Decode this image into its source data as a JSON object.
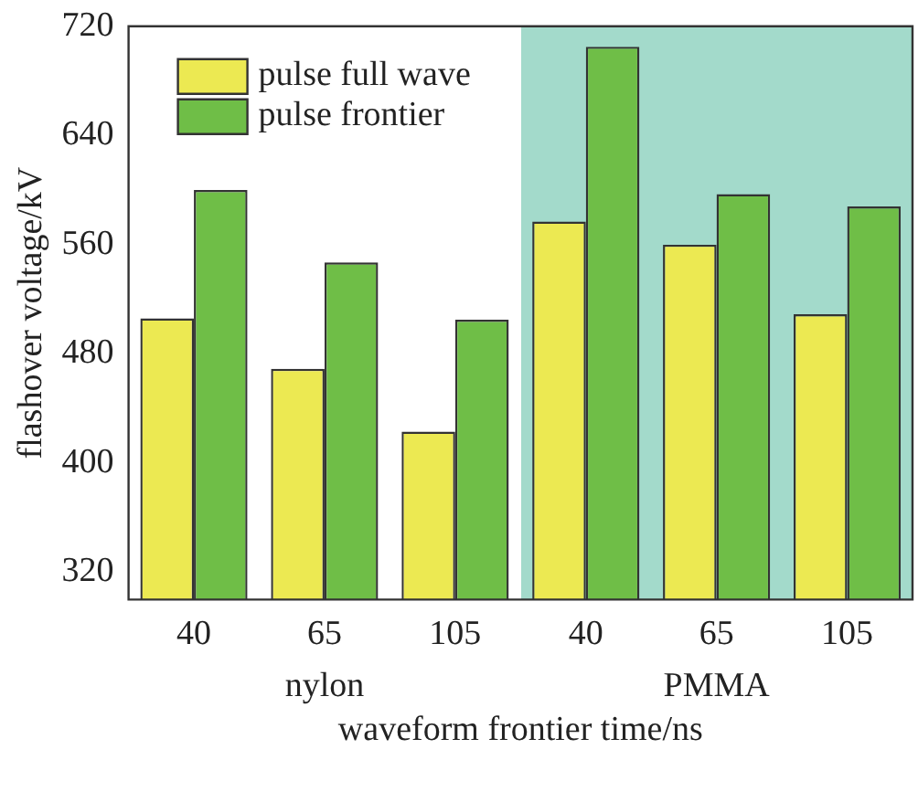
{
  "chart_data": {
    "type": "bar",
    "xlabel": "waveform frontier time/ns",
    "ylabel": "flashover voltage/kV",
    "categories": [
      "40",
      "65",
      "105",
      "40",
      "65",
      "105"
    ],
    "series": [
      {
        "name": "pulse full wave",
        "color": "#ece952",
        "values": [
          506,
          469,
          423,
          577,
          560,
          509
        ]
      },
      {
        "name": "pulse frontier",
        "color": "#6fbe47",
        "values": [
          600,
          547,
          505,
          705,
          597,
          588
        ]
      }
    ],
    "ylim": [
      300,
      720
    ],
    "yticks": [
      320,
      400,
      480,
      560,
      640,
      720
    ],
    "annotations": [
      "nylon",
      "PMMA"
    ],
    "legend": "top left",
    "grid": false
  }
}
